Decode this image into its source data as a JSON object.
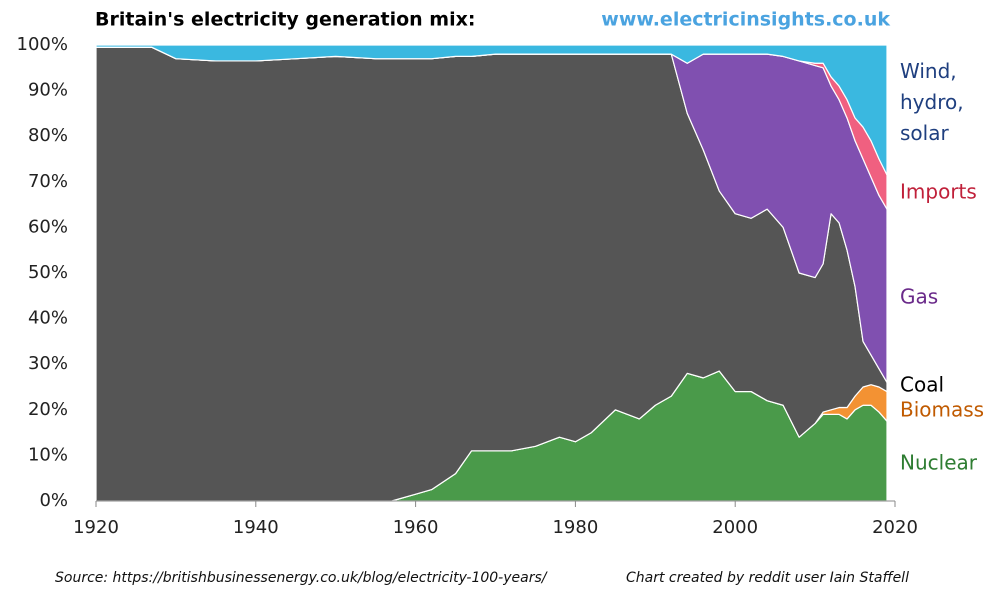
{
  "chart_data": {
    "type": "stacked_area",
    "title": "Britain's electricity generation mix:",
    "subtitle": "www.electricinsights.co.uk",
    "source": "Source: https://britishbusinessenergy.co.uk/blog/electricity-100-years/",
    "credit": "Chart created by reddit user Iain Staffell",
    "x": [
      1920,
      1927,
      1930,
      1935,
      1940,
      1945,
      1950,
      1955,
      1957,
      1960,
      1962,
      1965,
      1967,
      1970,
      1972,
      1975,
      1978,
      1980,
      1982,
      1985,
      1988,
      1990,
      1992,
      1994,
      1996,
      1998,
      2000,
      2002,
      2004,
      2006,
      2008,
      2010,
      2011,
      2012,
      2013,
      2014,
      2015,
      2016,
      2017,
      2018,
      2019
    ],
    "series": [
      {
        "name": "Nuclear",
        "color": "#4a9a4a",
        "label_color": "#2e7d32",
        "values": [
          0,
          0,
          0,
          0,
          0,
          0,
          0,
          0,
          0,
          1.5,
          2.5,
          6,
          11,
          11,
          11,
          12,
          14,
          13,
          15,
          20,
          18,
          21,
          23,
          28,
          27,
          28.5,
          24,
          24,
          22,
          21,
          14,
          17,
          19,
          19,
          19,
          18,
          20,
          21,
          21,
          19.5,
          17.5
        ]
      },
      {
        "name": "Biomass",
        "color": "#f39233",
        "label_color": "#c05a00",
        "values": [
          0,
          0,
          0,
          0,
          0,
          0,
          0,
          0,
          0,
          0,
          0,
          0,
          0,
          0,
          0,
          0,
          0,
          0,
          0,
          0,
          0,
          0,
          0,
          0,
          0,
          0,
          0,
          0,
          0,
          0,
          0,
          0,
          0.5,
          1,
          1.5,
          2.5,
          3,
          4,
          4.5,
          5.5,
          6.5
        ]
      },
      {
        "name": "Coal",
        "color": "#555555",
        "label_color": "#000000",
        "values": [
          99.5,
          99.5,
          97,
          96.5,
          96.5,
          97,
          97.5,
          97,
          97,
          95.5,
          94.5,
          91.5,
          86.5,
          87,
          87,
          86,
          84,
          85,
          83,
          78,
          80,
          77,
          75,
          57,
          50,
          39.5,
          39,
          38,
          42,
          39,
          36,
          32,
          32.5,
          43,
          40.5,
          34.5,
          24,
          10,
          6.5,
          4,
          2
        ]
      },
      {
        "name": "Gas",
        "color": "#8050b0",
        "label_color": "#6a2a8a",
        "values": [
          0,
          0,
          0,
          0,
          0,
          0,
          0,
          0,
          0,
          0,
          0,
          0,
          0,
          0,
          0,
          0,
          0,
          0,
          0,
          0,
          0,
          0,
          0,
          11,
          21,
          30,
          35,
          36,
          34,
          37.5,
          46.5,
          46.5,
          43,
          28,
          27,
          29,
          32,
          40,
          39,
          38,
          38
        ]
      },
      {
        "name": "Imports",
        "color": "#f06080",
        "label_color": "#c0203a",
        "values": [
          0,
          0,
          0,
          0,
          0,
          0,
          0,
          0,
          0,
          0,
          0,
          0,
          0,
          0,
          0,
          0,
          0,
          0,
          0,
          0,
          0,
          0,
          0,
          0,
          0,
          0,
          0,
          0,
          0,
          0,
          0,
          0.5,
          1,
          2,
          3,
          4,
          5,
          7,
          8,
          8,
          7.5
        ]
      },
      {
        "name": "Wind, hydro, solar",
        "color": "#3ab8e0",
        "label_color": "#1f3f7f",
        "values": [
          0.5,
          0.5,
          3,
          3.5,
          3.5,
          3,
          2.5,
          3,
          3,
          3,
          3,
          2.5,
          2.5,
          2,
          2,
          2,
          2,
          2,
          2,
          2,
          2,
          2,
          2,
          4,
          2,
          2,
          2,
          2,
          2,
          2.5,
          3.5,
          4,
          4,
          7,
          9,
          12,
          16,
          18,
          21,
          25,
          28.5
        ]
      }
    ],
    "xlim": [
      1920,
      2020
    ],
    "xticks": [
      1920,
      1940,
      1960,
      1980,
      2000,
      2020
    ],
    "ylim": [
      0,
      100
    ],
    "yticks": [
      {
        "value": 0,
        "label": "0%"
      },
      {
        "value": 10,
        "label": "10%"
      },
      {
        "value": 20,
        "label": "20%"
      },
      {
        "value": 30,
        "label": "30%"
      },
      {
        "value": 40,
        "label": "40%"
      },
      {
        "value": 50,
        "label": "50%"
      },
      {
        "value": 60,
        "label": "60%"
      },
      {
        "value": 70,
        "label": "70%"
      },
      {
        "value": 80,
        "label": "80%"
      },
      {
        "value": 90,
        "label": "90%"
      },
      {
        "value": 100,
        "label": "100%"
      }
    ]
  }
}
